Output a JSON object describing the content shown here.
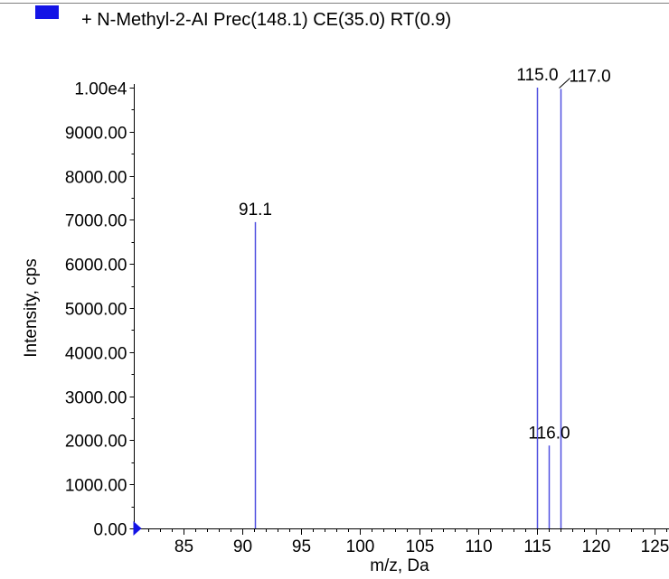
{
  "legend": {
    "label": "+ N-Methyl-2-AI Prec(148.1) CE(35.0) RT(0.9)",
    "swatch_color": "#1414e6"
  },
  "chart_data": {
    "type": "bar",
    "title": "",
    "xlabel": "m/z, Da",
    "ylabel": "Intensity, cps",
    "xlim": [
      80.5,
      126.2
    ],
    "ylim": [
      0,
      10000
    ],
    "x_ticks": [
      85,
      90,
      95,
      100,
      105,
      110,
      115,
      120,
      125
    ],
    "y_ticks": [
      {
        "value": 0,
        "label": "0.00"
      },
      {
        "value": 1000,
        "label": "1000.00"
      },
      {
        "value": 2000,
        "label": "2000.00"
      },
      {
        "value": 3000,
        "label": "3000.00"
      },
      {
        "value": 4000,
        "label": "4000.00"
      },
      {
        "value": 5000,
        "label": "5000.00"
      },
      {
        "value": 6000,
        "label": "6000.00"
      },
      {
        "value": 7000,
        "label": "7000.00"
      },
      {
        "value": 8000,
        "label": "8000.00"
      },
      {
        "value": 9000,
        "label": "9000.00"
      },
      {
        "value": 10000,
        "label": "1.00e4"
      }
    ],
    "peaks": [
      {
        "mz": 91.1,
        "intensity": 6950,
        "label": "91.1"
      },
      {
        "mz": 115.0,
        "intensity": 10000,
        "label": "115.0"
      },
      {
        "mz": 116.0,
        "intensity": 1880,
        "label": "116.0"
      },
      {
        "mz": 117.0,
        "intensity": 9970,
        "label": "117.0"
      }
    ],
    "peak_color": "#5050e0",
    "axis_marker_color": "#1414e6",
    "grid": false
  }
}
